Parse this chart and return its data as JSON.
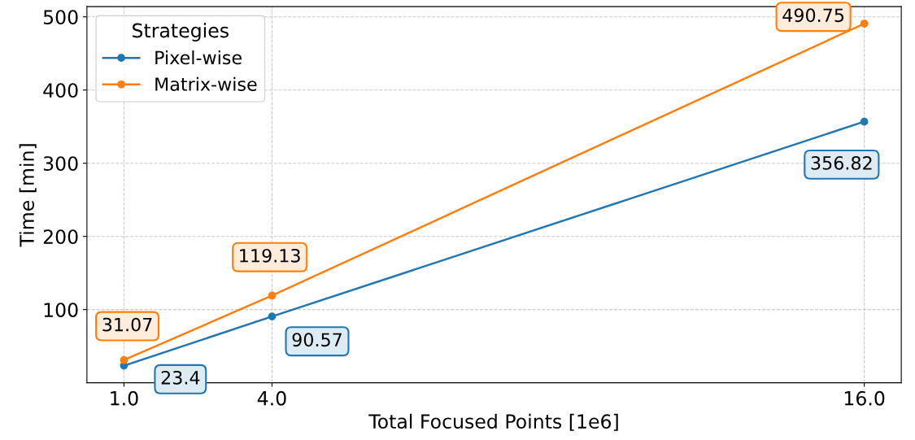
{
  "chart_data": {
    "type": "line",
    "xlabel": "Total Focused Points [1e6]",
    "ylabel": "Time [min]",
    "legend_title": "Strategies",
    "x": [
      1.0,
      4.0,
      16.0
    ],
    "series": [
      {
        "name": "Pixel-wise",
        "color": "#1f77b4",
        "values": [
          23.4,
          90.57,
          356.82
        ],
        "value_labels": [
          "23.4",
          "90.57",
          "356.82"
        ]
      },
      {
        "name": "Matrix-wise",
        "color": "#ff7f0e",
        "values": [
          31.07,
          119.13,
          490.75
        ],
        "value_labels": [
          "31.07",
          "119.13",
          "490.75"
        ]
      }
    ],
    "xlim": [
      0.25,
      16.75
    ],
    "ylim": [
      0,
      514
    ],
    "xticks": [
      {
        "value": 1,
        "label": "1.0"
      },
      {
        "value": 4,
        "label": "4.0"
      },
      {
        "value": 16,
        "label": "16.0"
      }
    ],
    "yticks": [
      100,
      200,
      300,
      400,
      500
    ],
    "grid": true,
    "legend": "top left",
    "marker": "circle",
    "line_style": "solid"
  }
}
